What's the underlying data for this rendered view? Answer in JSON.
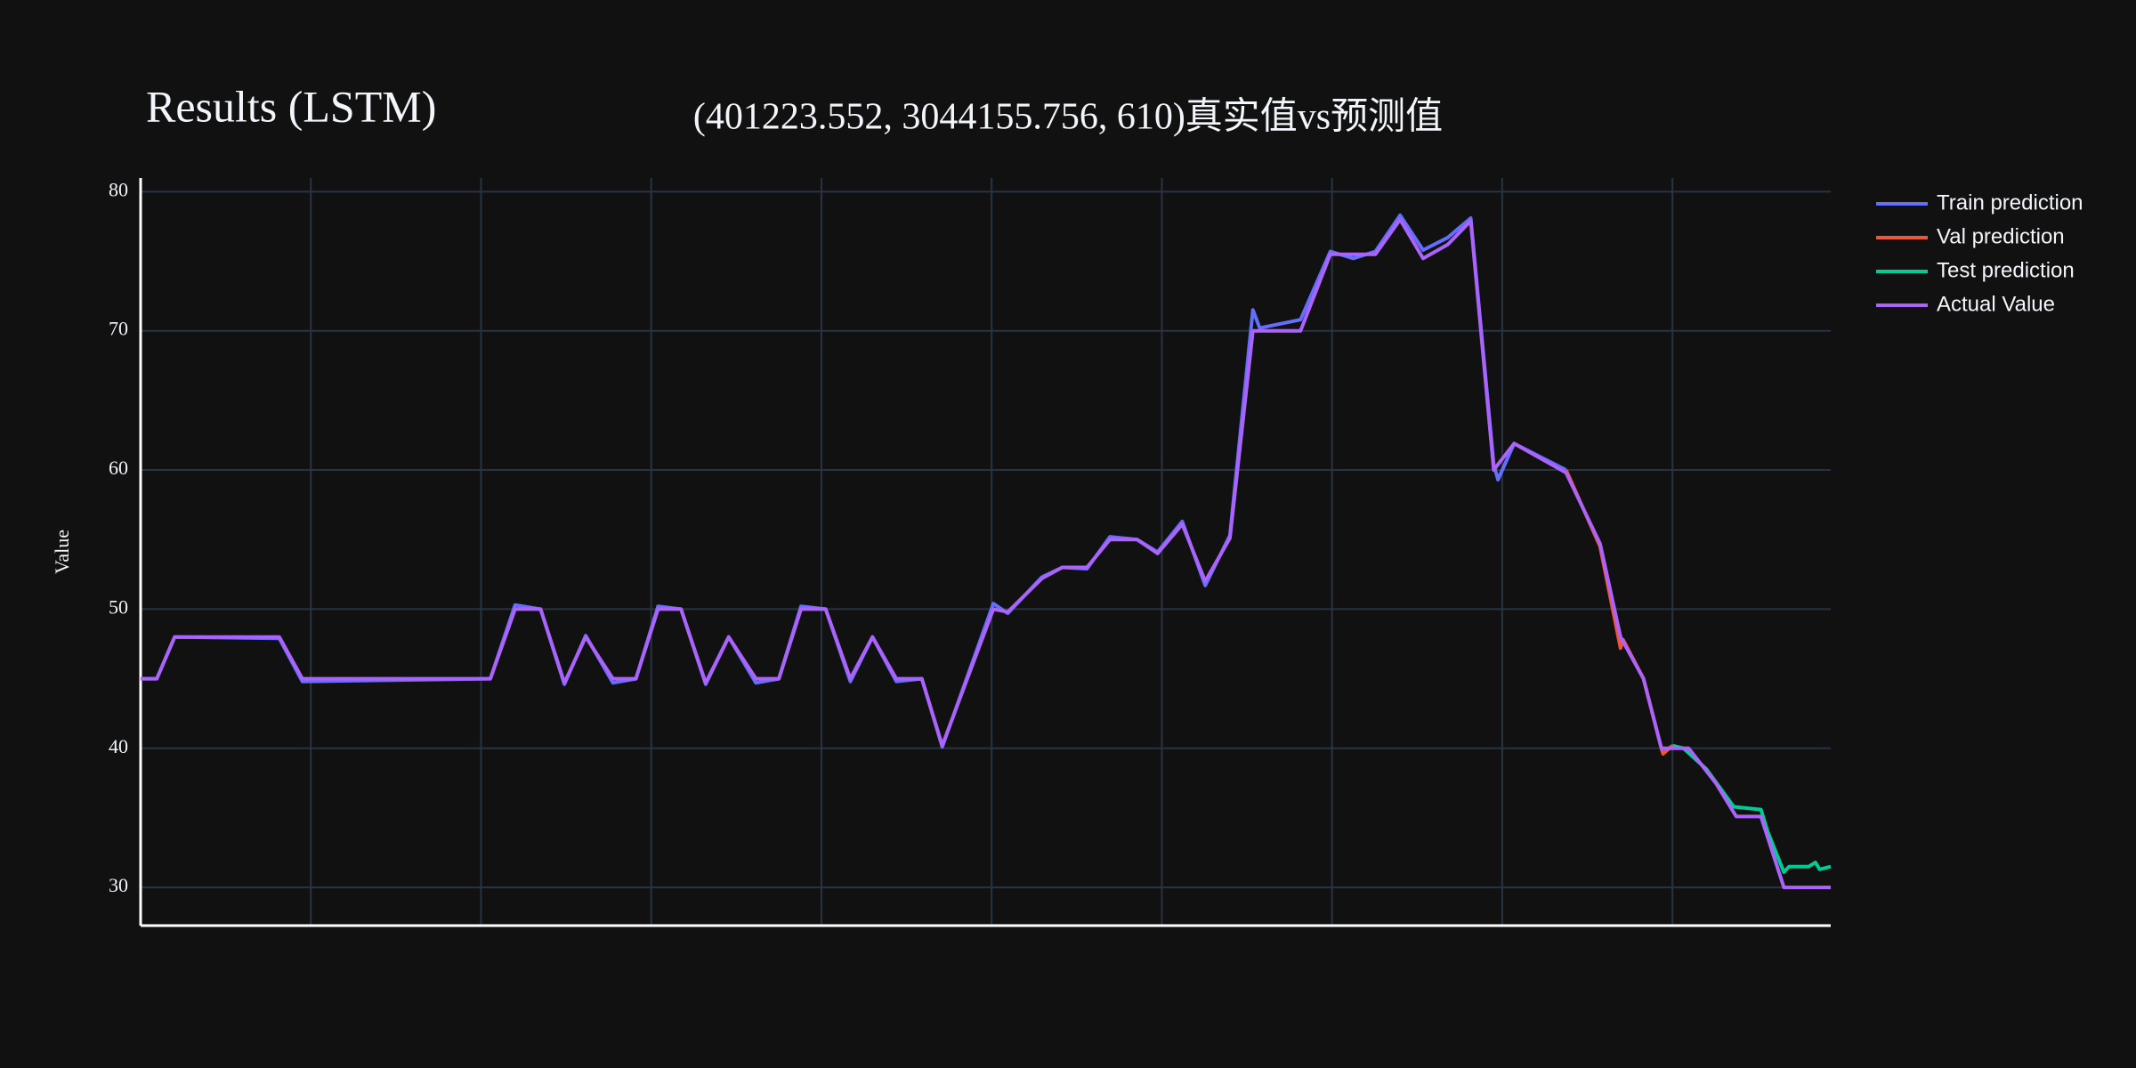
{
  "chart_data": {
    "type": "line",
    "title": "Results (LSTM)",
    "subtitle": "(401223.552, 3044155.756, 610)真实值vs预测值",
    "y_label": "Value",
    "xlim": [
      0,
      198.6
    ],
    "xticks": [
      20,
      40,
      60,
      80,
      100,
      120,
      140,
      160,
      180
    ],
    "ylim": [
      27.26,
      80.98
    ],
    "yticks": [
      30,
      40,
      50,
      60,
      70,
      80
    ],
    "grid": true,
    "legend": "right",
    "series": [
      {
        "name": "Train prediction",
        "color": "#636efa",
        "x": [
          0,
          1.9,
          4,
          16.3,
          19,
          41.1,
          44,
          47,
          49.8,
          52.3,
          55.5,
          58.2,
          60.8,
          63.5,
          66.4,
          69.1,
          72.3,
          75,
          77.6,
          80.5,
          83.4,
          86,
          88.8,
          91.8,
          94.2,
          100.2,
          101.9,
          105.9,
          108.3,
          111.2,
          113.9,
          117.1,
          119.5,
          122.4,
          125.1,
          128,
          130.7,
          131.5,
          136.3,
          139.8,
          142.5,
          145.1,
          148,
          150.7,
          153.6,
          156.3,
          159,
          159.5,
          161.4,
          167.5
        ],
        "values": [
          45,
          45,
          48,
          47.9,
          44.8,
          45,
          50.3,
          50,
          44.6,
          48.1,
          44.7,
          45,
          50.2,
          50,
          44.6,
          48,
          44.7,
          45,
          50.2,
          50,
          44.8,
          48,
          44.8,
          45,
          40.1,
          50.4,
          49.7,
          52.3,
          53,
          52.9,
          55.2,
          55,
          54.1,
          56.3,
          51.7,
          55.3,
          71.5,
          70.2,
          70.8,
          75.7,
          75.2,
          75.7,
          78.3,
          75.8,
          76.7,
          78.1,
          60.4,
          59.3,
          61.9,
          60
        ]
      },
      {
        "name": "Val prediction",
        "color": "#EF553B",
        "x": [
          167.5,
          171.5,
          173.9,
          174.2,
          176.6,
          178.7,
          178.9,
          180
        ],
        "values": [
          60,
          54.5,
          47.2,
          47.8,
          45,
          40,
          39.6,
          40.2
        ]
      },
      {
        "name": "Test prediction",
        "color": "#00cc96",
        "x": [
          180,
          181.3,
          184,
          187.2,
          190.4,
          191.2,
          193.1,
          193.7,
          196,
          196.8,
          197.3,
          198.6
        ],
        "values": [
          40.2,
          40,
          38.5,
          35.8,
          35.6,
          34,
          31.1,
          31.5,
          31.5,
          31.8,
          31.3,
          31.5
        ]
      },
      {
        "name": "Actual Value",
        "color": "#ab63fa",
        "x": [
          0,
          1.9,
          4,
          16.3,
          19,
          41.1,
          44,
          47,
          49.8,
          52.3,
          55.5,
          58.2,
          60.8,
          63.5,
          66.4,
          69.1,
          72.3,
          75,
          77.6,
          80.5,
          83.4,
          86,
          88.8,
          91.8,
          94.2,
          100.2,
          101.9,
          105.9,
          108.3,
          111.2,
          113.9,
          117.1,
          119.5,
          122.4,
          125.1,
          128,
          130.7,
          136.3,
          139.8,
          145.1,
          148,
          150.7,
          153.6,
          156.3,
          159,
          161.4,
          167.5,
          171.5,
          173.9,
          176.6,
          178.7,
          181.9,
          185.1,
          187.5,
          190.4,
          193.1,
          198.6
        ],
        "values": [
          45,
          45,
          48,
          48,
          45,
          45,
          50,
          50,
          44.7,
          48,
          45,
          45,
          50,
          50,
          44.7,
          48,
          45,
          45,
          50,
          50,
          45,
          48,
          45,
          45,
          40.2,
          50,
          49.8,
          52.2,
          53,
          53,
          55,
          55,
          54,
          56.1,
          52,
          55.1,
          70,
          70,
          75.5,
          75.5,
          78,
          75.2,
          76.2,
          77.9,
          60,
          61.9,
          59.8,
          54.7,
          48,
          45,
          40,
          40,
          37.5,
          35.1,
          35.1,
          30,
          30
        ]
      }
    ]
  }
}
